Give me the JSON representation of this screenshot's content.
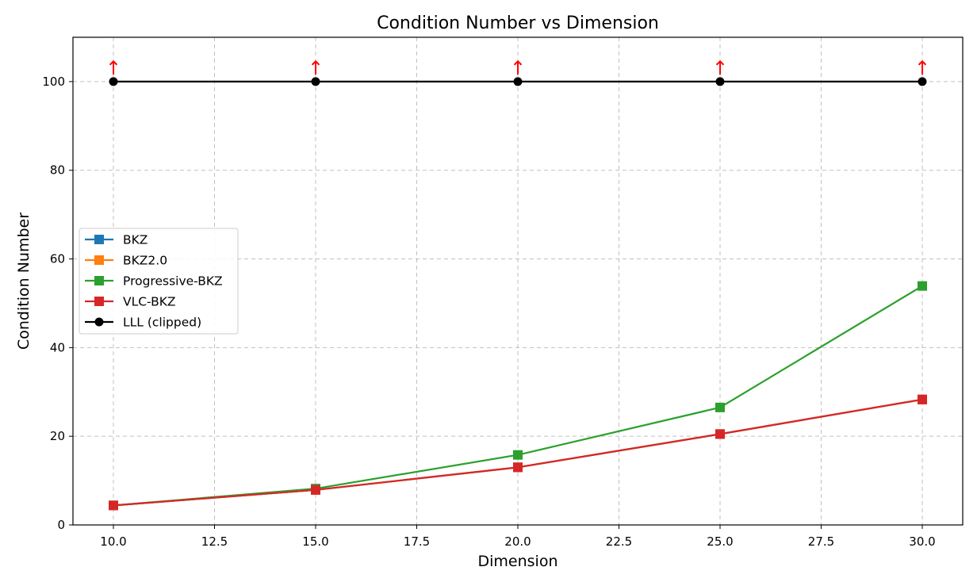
{
  "chart_data": {
    "type": "line",
    "title": "Condition Number vs Dimension",
    "xlabel": "Dimension",
    "ylabel": "Condition Number",
    "xlim": [
      9,
      31
    ],
    "ylim": [
      0,
      110
    ],
    "xticks": [
      "10.0",
      "12.5",
      "15.0",
      "17.5",
      "20.0",
      "22.5",
      "25.0",
      "27.5",
      "30.0"
    ],
    "yticks": [
      "0",
      "20",
      "40",
      "60",
      "80",
      "100"
    ],
    "grid": true,
    "legend_position": "center-left",
    "x": [
      10,
      15,
      20,
      25,
      30
    ],
    "series": [
      {
        "name": "BKZ",
        "marker": "square",
        "color": "#1f77b4",
        "values": [
          4.4,
          7.9,
          13.0,
          20.5,
          28.3
        ]
      },
      {
        "name": "BKZ2.0",
        "marker": "square",
        "color": "#ff7f0e",
        "values": [
          4.4,
          7.9,
          13.0,
          20.5,
          28.3
        ]
      },
      {
        "name": "Progressive-BKZ",
        "marker": "square",
        "color": "#2ca02c",
        "values": [
          4.4,
          8.2,
          15.8,
          26.5,
          53.9
        ]
      },
      {
        "name": "VLC-BKZ",
        "marker": "square",
        "color": "#d62728",
        "values": [
          4.4,
          7.9,
          13.0,
          20.5,
          28.3
        ]
      },
      {
        "name": "LLL (clipped)",
        "marker": "circle",
        "color": "#000000",
        "values": [
          100,
          100,
          100,
          100,
          100
        ]
      }
    ],
    "clip_arrow_glyph": "↑",
    "clip_arrow_color": "#ff0000"
  }
}
